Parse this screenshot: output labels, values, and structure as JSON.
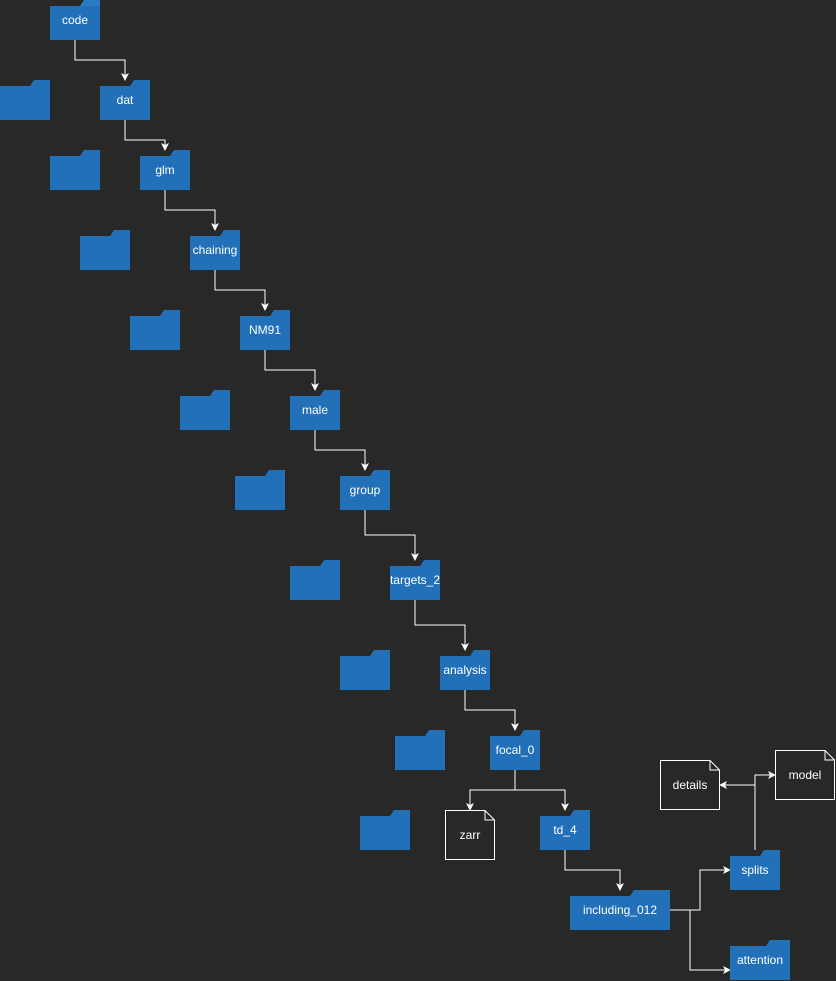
{
  "colors": {
    "background": "#282828",
    "folder": "#2170b8",
    "folder_tab": "#2a7ac4",
    "line": "#ffffff",
    "file_stroke": "#ffffff"
  },
  "nodes": {
    "code": "code",
    "dat": "dat",
    "glm": "glm",
    "chaining": "chaining",
    "nm91": "NM91",
    "male": "male",
    "group": "group",
    "targets_2": "targets_2",
    "analysis": "analysis",
    "focal_0": "focal_0",
    "zarr": "zarr",
    "td_4": "td_4",
    "including_012": "including_012",
    "splits": "splits",
    "attention": "attention",
    "details": "details",
    "model": "model"
  }
}
